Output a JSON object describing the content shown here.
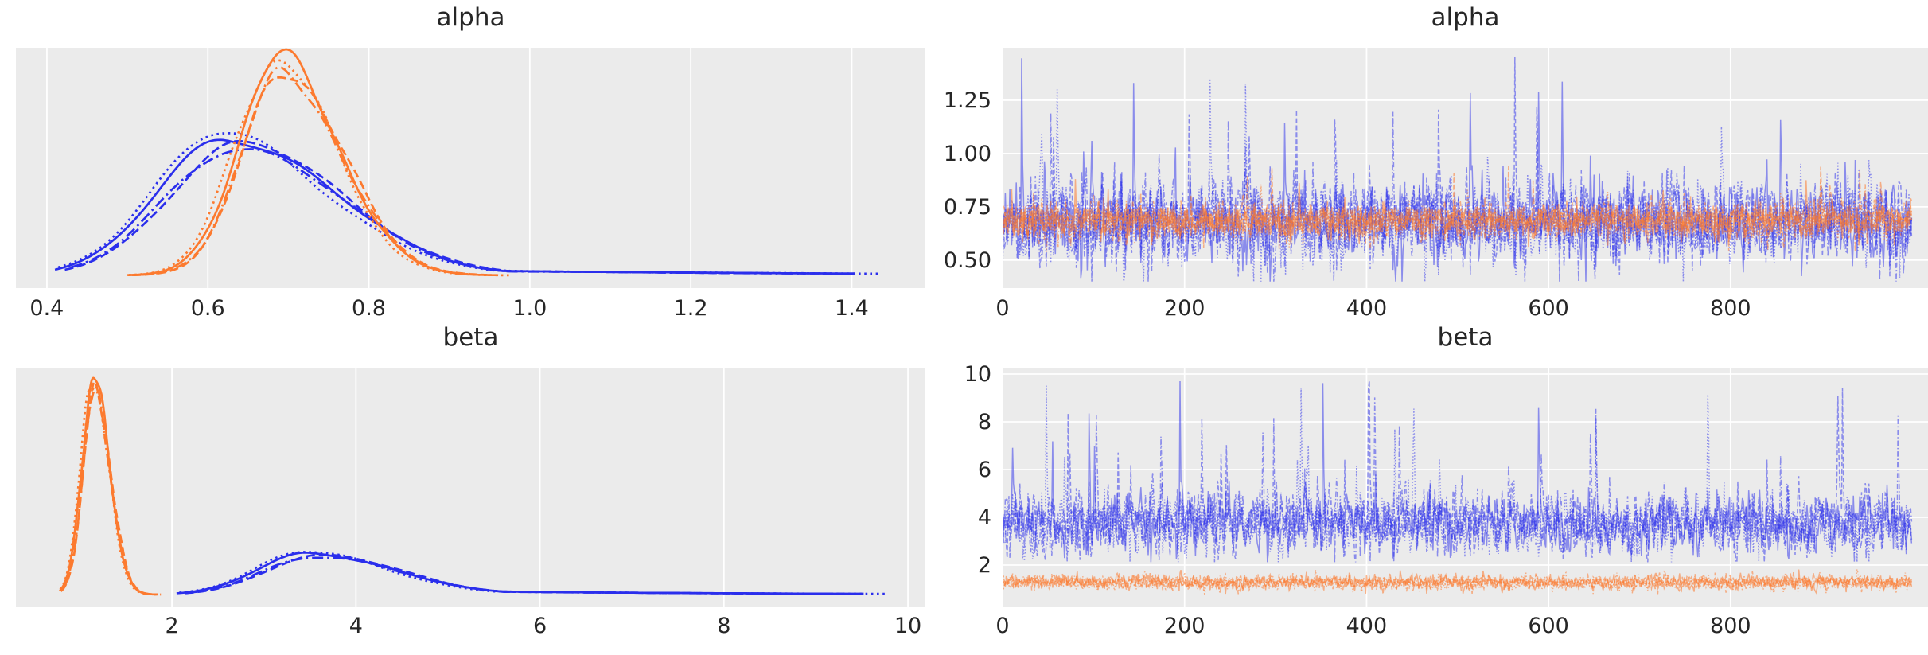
{
  "figure": {
    "background": "#ffffff",
    "axes_background": "#ebebeb",
    "grid_color": "#ffffff",
    "text_color": "#262626",
    "blue_color": "#2a2eec",
    "orange_color": "#fc7a2f",
    "n_chains_per_group": 4,
    "chain_line_styles": [
      "solid",
      "dashed",
      "dotted",
      "dashdot"
    ]
  },
  "chart_data": [
    {
      "id": "alpha-posterior-kde",
      "type": "line",
      "subtype": "kde",
      "title": "alpha",
      "x_tick_labels": [
        "0.4",
        "0.6",
        "0.8",
        "1.0",
        "1.2",
        "1.4"
      ],
      "x_tick_values": [
        0.4,
        0.6,
        0.8,
        1.0,
        1.2,
        1.4
      ],
      "xlim": [
        0.3615,
        1.4915
      ],
      "grid": "vertical",
      "series": [
        {
          "name": "blue group (4 chains)",
          "color": "#2a2eec",
          "peak_x": 0.625,
          "sigma_left": 0.085,
          "sigma_right": 0.13,
          "data_range": [
            0.41,
            1.435
          ],
          "peak_height_frac": 0.63,
          "tail": {
            "amp": 0.045,
            "decay": 2.0,
            "start": 0.8
          }
        },
        {
          "name": "orange group (4 chains)",
          "color": "#fc7a2f",
          "peak_x": 0.69,
          "sigma_left": 0.052,
          "sigma_right": 0.072,
          "data_range": [
            0.5,
            0.975
          ],
          "peak_height_frac": 0.98
        }
      ]
    },
    {
      "id": "alpha-trace",
      "type": "line",
      "subtype": "trace",
      "title": "alpha",
      "x_tick_labels": [
        "0",
        "200",
        "400",
        "600",
        "800"
      ],
      "x_tick_values": [
        0,
        200,
        400,
        600,
        800
      ],
      "xlim": [
        0,
        1017
      ],
      "y_tick_labels": [
        "0.50",
        "0.75",
        "1.00",
        "1.25"
      ],
      "y_tick_values": [
        0.5,
        0.75,
        1.0,
        1.25
      ],
      "ylim": [
        0.369,
        1.496
      ],
      "n_draws": 1000,
      "grid": "both",
      "series": [
        {
          "name": "blue group (4 chains)",
          "color": "#2a2eec",
          "opacity": 0.5,
          "mean": 0.68,
          "sd": 0.095,
          "autocorr": 0.25,
          "spike_prob": 0.011,
          "spike_add": [
            0.15,
            0.72
          ],
          "dip_prob": 0.008,
          "dip_sub": [
            0.1,
            0.28
          ],
          "clip": [
            0.4,
            1.48
          ]
        },
        {
          "name": "orange group (4 chains)",
          "color": "#fc7a2f",
          "opacity": 0.55,
          "mean": 0.685,
          "sd": 0.042,
          "autocorr": 0.2,
          "spike_prob": 0.004,
          "spike_add": [
            0.08,
            0.25
          ],
          "dip_prob": 0.003,
          "dip_sub": [
            0.05,
            0.12
          ],
          "clip": [
            0.45,
            1.1
          ]
        }
      ]
    },
    {
      "id": "beta-posterior-kde",
      "type": "line",
      "subtype": "kde",
      "title": "beta",
      "x_tick_labels": [
        "2",
        "4",
        "6",
        "8",
        "10"
      ],
      "x_tick_values": [
        2,
        4,
        6,
        8,
        10
      ],
      "xlim": [
        0.304,
        10.19
      ],
      "grid": "vertical",
      "series": [
        {
          "name": "blue group (4 chains)",
          "color": "#2a2eec",
          "peak_x": 3.5,
          "sigma_left": 0.55,
          "sigma_right": 0.9,
          "data_range": [
            2.05,
            9.75
          ],
          "peak_height_frac": 0.19,
          "tail": {
            "amp": 0.09,
            "decay": 0.35,
            "start": 5.0
          }
        },
        {
          "name": "orange group (4 chains)",
          "color": "#fc7a2f",
          "peak_x": 1.15,
          "sigma_left": 0.13,
          "sigma_right": 0.17,
          "data_range": [
            0.78,
            1.88
          ],
          "peak_height_frac": 0.98
        }
      ]
    },
    {
      "id": "beta-trace",
      "type": "line",
      "subtype": "trace",
      "title": "beta",
      "x_tick_labels": [
        "0",
        "200",
        "400",
        "600",
        "800"
      ],
      "x_tick_values": [
        0,
        200,
        400,
        600,
        800
      ],
      "xlim": [
        0,
        1017
      ],
      "y_tick_labels": [
        "2",
        "4",
        "6",
        "8",
        "10"
      ],
      "y_tick_values": [
        2,
        4,
        6,
        8,
        10
      ],
      "ylim": [
        0.233,
        10.267
      ],
      "n_draws": 1000,
      "grid": "both",
      "series": [
        {
          "name": "blue group (4 chains)",
          "color": "#2a2eec",
          "opacity": 0.5,
          "mean": 3.75,
          "sd": 0.62,
          "autocorr": 0.3,
          "spike_prob": 0.011,
          "spike_add": [
            1.0,
            5.6
          ],
          "dip_prob": 0.006,
          "dip_sub": [
            0.5,
            1.2
          ],
          "clip": [
            2.12,
            9.8
          ]
        },
        {
          "name": "orange group (4 chains)",
          "color": "#fc7a2f",
          "opacity": 0.55,
          "mean": 1.27,
          "sd": 0.15,
          "autocorr": 0.2,
          "spike_prob": 0.004,
          "spike_add": [
            0.2,
            0.55
          ],
          "dip_prob": 0.003,
          "dip_sub": [
            0.1,
            0.3
          ],
          "clip": [
            0.72,
            2.2
          ]
        }
      ]
    }
  ]
}
